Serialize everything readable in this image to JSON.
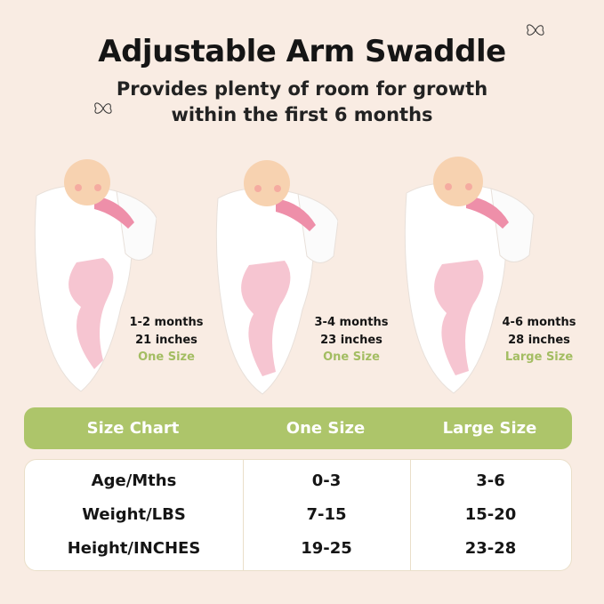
{
  "header": {
    "title": "Adjustable Arm Swaddle",
    "subtitle_line1": "Provides plenty of room for growth",
    "subtitle_line2": "within the first 6 months"
  },
  "products": [
    {
      "age": "1-2 months",
      "length": "21 inches",
      "size": "One Size"
    },
    {
      "age": "3-4 months",
      "length": "23 inches",
      "size": "One Size"
    },
    {
      "age": "4-6 months",
      "length": "28 inches",
      "size": "Large Size"
    }
  ],
  "size_chart": {
    "headers": [
      "Size Chart",
      "One Size",
      "Large Size"
    ],
    "rows": [
      [
        "Age/Mths",
        "0-3",
        "3-6"
      ],
      [
        "Weight/LBS",
        "7-15",
        "15-20"
      ],
      [
        "Height/INCHES",
        "19-25",
        "23-28"
      ]
    ]
  },
  "colors": {
    "background": "#f9ece3",
    "accent_green": "#adc56a",
    "swaddle_pink": "#f4b6c6"
  }
}
